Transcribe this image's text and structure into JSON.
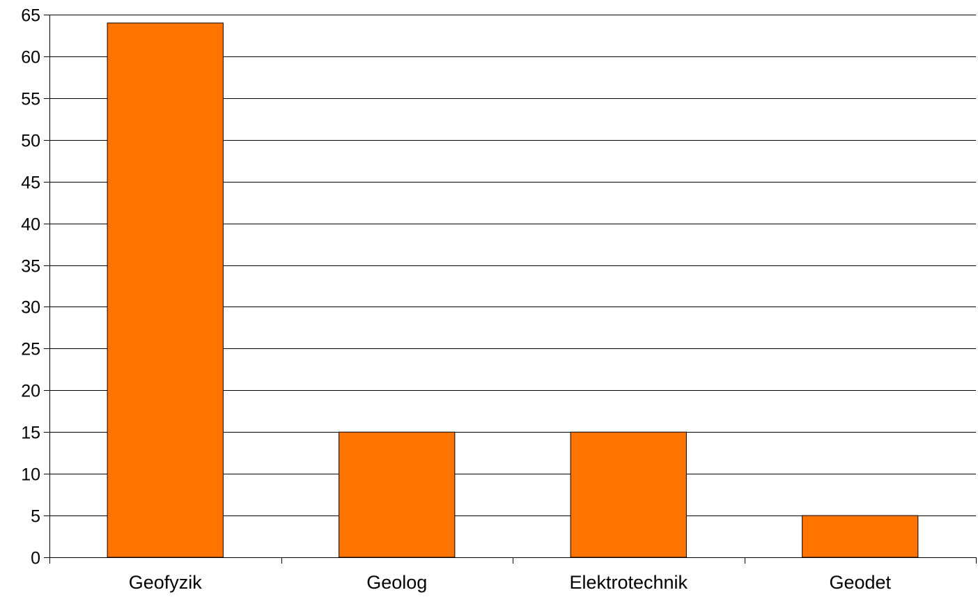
{
  "chart_data": {
    "type": "bar",
    "title": "",
    "xlabel": "",
    "ylabel": "",
    "categories": [
      "Geofyzik",
      "Geolog",
      "Elektrotechnik",
      "Geodet"
    ],
    "values": [
      64,
      15,
      15,
      5
    ],
    "ylim": [
      0,
      65
    ],
    "yticks": [
      0,
      5,
      10,
      15,
      20,
      25,
      30,
      35,
      40,
      45,
      50,
      55,
      60,
      65
    ],
    "grid": true,
    "legend": "none",
    "colors": {
      "bar_fill": "#ff7300",
      "bar_stroke": "#000000",
      "grid": "#000000",
      "axis": "#000000"
    }
  }
}
